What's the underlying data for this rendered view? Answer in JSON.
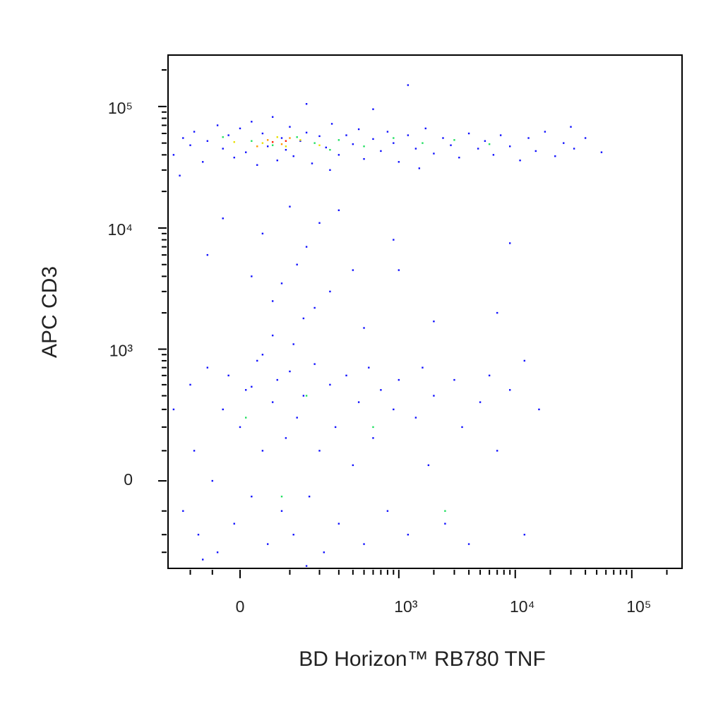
{
  "chart_data": {
    "type": "scatter",
    "xlabel": "BD Horizon™ RB780 TNF",
    "ylabel": "APC CD3",
    "xscale": "biexponential",
    "yscale": "biexponential",
    "xlim": [
      -170,
      270000
    ],
    "ylim": [
      -420,
      265000
    ],
    "xticks": [
      0,
      {
        "value": 1000,
        "label": "10³"
      },
      {
        "value": 10000,
        "label": "10⁴"
      },
      {
        "value": 100000,
        "label": "10⁵"
      }
    ],
    "yticks": [
      0,
      {
        "value": 1000,
        "label": "10³"
      },
      {
        "value": 10000,
        "label": "10⁴"
      },
      {
        "value": 100000,
        "label": "10⁵"
      }
    ],
    "xminorticks": [
      -100,
      -50,
      100,
      200,
      300,
      400,
      500,
      600,
      700,
      800,
      900,
      2000,
      3000,
      4000,
      5000,
      6000,
      7000,
      8000,
      9000,
      20000,
      30000,
      40000,
      50000,
      60000,
      70000,
      80000,
      90000,
      200000
    ],
    "yminorticks": [
      -300,
      -200,
      -100,
      100,
      200,
      300,
      400,
      500,
      600,
      700,
      800,
      900,
      2000,
      3000,
      4000,
      5000,
      6000,
      7000,
      8000,
      9000,
      20000,
      30000,
      40000,
      50000,
      60000,
      70000,
      80000,
      90000,
      200000
    ],
    "series": [
      {
        "color": "#1010ff",
        "x": [
          -150,
          -120,
          -100,
          -90,
          -70,
          -60,
          -40,
          -30,
          -20,
          -10,
          0,
          10,
          20,
          30,
          40,
          50,
          60,
          70,
          80,
          90,
          100,
          110,
          130,
          150,
          170,
          200,
          230,
          260,
          300,
          350,
          400,
          450,
          500,
          600,
          700,
          800,
          900,
          1000,
          1200,
          1400,
          1700,
          2000,
          2400,
          2800,
          3300,
          4000,
          4800,
          5500,
          6500,
          7500,
          9000,
          11000,
          13000,
          15000,
          18000,
          22000,
          26000,
          32000,
          40000,
          55000,
          -130,
          250,
          1500,
          600,
          150,
          1200,
          30000
        ],
        "values": [
          40000,
          55000,
          48000,
          62000,
          35000,
          52000,
          70000,
          45000,
          58000,
          38000,
          66000,
          42000,
          75000,
          33000,
          60000,
          47000,
          82000,
          36000,
          55000,
          44000,
          68000,
          39000,
          52000,
          61000,
          34000,
          57000,
          46000,
          72000,
          40000,
          58000,
          49000,
          65000,
          37000,
          54000,
          43000,
          62000,
          50000,
          35000,
          58000,
          45000,
          66000,
          41000,
          55000,
          48000,
          38000,
          60000,
          45000,
          52000,
          40000,
          58000,
          47000,
          36000,
          55000,
          43000,
          62000,
          39000,
          50000,
          45000,
          55000,
          42000,
          27000,
          30000,
          31000,
          95000,
          105000,
          150000,
          68000
        ]
      },
      {
        "color": "#1010ff",
        "x": [
          -60,
          -30,
          20,
          40,
          60,
          80,
          100,
          120,
          140,
          150,
          180,
          200,
          250,
          300,
          400,
          500,
          900,
          1000,
          2000,
          7000,
          9000,
          60,
          110
        ],
        "values": [
          6000,
          12000,
          4000,
          9000,
          2500,
          3500,
          15000,
          5000,
          1800,
          7000,
          2200,
          11000,
          3000,
          14000,
          4500,
          1500,
          8000,
          4500,
          1700,
          2000,
          7500,
          1300,
          1100
        ]
      },
      {
        "color": "#1010ff",
        "x": [
          -150,
          -120,
          -100,
          -90,
          -80,
          -60,
          -50,
          -40,
          -30,
          -20,
          -10,
          0,
          10,
          20,
          30,
          40,
          50,
          60,
          70,
          80,
          90,
          100,
          110,
          120,
          140,
          160,
          180,
          200,
          220,
          250,
          280,
          300,
          350,
          400,
          450,
          500,
          550,
          600,
          700,
          800,
          900,
          1000,
          1200,
          1400,
          1600,
          1800,
          2000,
          2500,
          3000,
          3500,
          4000,
          5000,
          6000,
          7000,
          9000,
          12000,
          12000,
          16000,
          -70,
          150,
          40,
          20
        ],
        "values": [
          300,
          -100,
          500,
          100,
          -200,
          700,
          0,
          -300,
          300,
          600,
          -150,
          200,
          450,
          -50,
          800,
          100,
          -250,
          350,
          550,
          -100,
          150,
          650,
          -200,
          250,
          400,
          -50,
          750,
          100,
          -300,
          500,
          200,
          -150,
          600,
          50,
          350,
          -250,
          700,
          150,
          450,
          -100,
          300,
          550,
          -200,
          250,
          700,
          50,
          400,
          -150,
          550,
          200,
          -250,
          350,
          600,
          100,
          450,
          -200,
          800,
          300,
          -350,
          -400,
          900,
          480
        ]
      },
      {
        "color": "#20e060",
        "x": [
          20,
          60,
          120,
          180,
          300,
          500,
          900,
          1600,
          3000,
          6000,
          -30,
          250,
          10,
          80,
          150,
          600,
          2500
        ],
        "values": [
          52000,
          48000,
          56000,
          50000,
          53000,
          47000,
          55000,
          50000,
          53000,
          49000,
          56000,
          44000,
          250,
          -50,
          400,
          200,
          -100
        ]
      },
      {
        "color": "#e8e000",
        "x": [
          40,
          70,
          90,
          130,
          -10,
          200
        ],
        "values": [
          50000,
          56000,
          47000,
          53000,
          51000,
          48000
        ]
      },
      {
        "color": "#ff9900",
        "x": [
          50,
          80,
          100,
          30
        ],
        "values": [
          53000,
          49000,
          55000,
          47000
        ]
      },
      {
        "color": "#ff2000",
        "x": [
          60,
          90
        ],
        "values": [
          51000,
          52000
        ]
      }
    ]
  }
}
